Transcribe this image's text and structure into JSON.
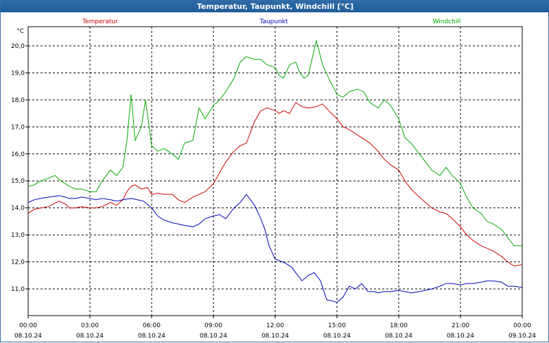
{
  "window": {
    "title": "Temperatur, Taupunkt, Windchill [°C]"
  },
  "chart_data": {
    "type": "line",
    "title": "Temperatur, Taupunkt, Windchill [°C]",
    "ylabel": "°C",
    "ylim": [
      10.0,
      20.5
    ],
    "yticks": [
      "11,0",
      "12,0",
      "13,0",
      "14,0",
      "15,0",
      "16,0",
      "17,0",
      "18,0",
      "19,0",
      "20,0"
    ],
    "ytick_values": [
      11,
      12,
      13,
      14,
      15,
      16,
      17,
      18,
      19,
      20
    ],
    "xlim": [
      0,
      24
    ],
    "xticks": [
      {
        "hour": 0,
        "time": "00:00",
        "date": "08.10.24"
      },
      {
        "hour": 3,
        "time": "03:00",
        "date": "08.10.24"
      },
      {
        "hour": 6,
        "time": "06:00",
        "date": "08.10.24"
      },
      {
        "hour": 9,
        "time": "09:00",
        "date": "08.10.24"
      },
      {
        "hour": 12,
        "time": "12:00",
        "date": "08.10.24"
      },
      {
        "hour": 15,
        "time": "15:00",
        "date": "08.10.24"
      },
      {
        "hour": 18,
        "time": "18:00",
        "date": "08.10.24"
      },
      {
        "hour": 21,
        "time": "21:00",
        "date": "08.10.24"
      },
      {
        "hour": 24,
        "time": "00:00",
        "date": "09.10.24"
      }
    ],
    "grid": true,
    "legend_placement": "top",
    "series": [
      {
        "name": "Temperatur",
        "color": "#cc0000",
        "x": [
          0,
          0.3,
          0.6,
          1,
          1.5,
          1.8,
          2,
          2.3,
          2.6,
          3,
          3.3,
          3.6,
          4,
          4.3,
          4.6,
          4.8,
          5,
          5.2,
          5.5,
          5.8,
          6,
          6.3,
          6.6,
          7,
          7.3,
          7.6,
          8,
          8.3,
          8.6,
          9,
          9.3,
          9.6,
          10,
          10.3,
          10.6,
          11,
          11.3,
          11.6,
          12,
          12.2,
          12.4,
          12.7,
          13,
          13.3,
          13.6,
          14,
          14.3,
          14.6,
          15,
          15.3,
          15.6,
          16,
          16.3,
          16.6,
          17,
          17.3,
          17.6,
          18,
          18.3,
          18.6,
          19,
          19.3,
          19.6,
          20,
          20.3,
          20.6,
          21,
          21.3,
          21.6,
          22,
          22.3,
          22.6,
          23,
          23.3,
          23.6,
          24
        ],
        "values": [
          13.8,
          13.95,
          14.0,
          14.05,
          14.25,
          14.15,
          14.0,
          14.0,
          14.05,
          14.0,
          14.0,
          14.05,
          14.2,
          14.1,
          14.3,
          14.6,
          14.8,
          14.85,
          14.7,
          14.75,
          14.5,
          14.55,
          14.5,
          14.5,
          14.3,
          14.2,
          14.4,
          14.5,
          14.6,
          14.9,
          15.3,
          15.7,
          16.1,
          16.3,
          16.4,
          17.2,
          17.6,
          17.7,
          17.6,
          17.5,
          17.6,
          17.5,
          17.9,
          17.75,
          17.7,
          17.75,
          17.85,
          17.6,
          17.3,
          17.0,
          16.9,
          16.7,
          16.55,
          16.4,
          16.1,
          15.8,
          15.6,
          15.4,
          15.0,
          14.7,
          14.4,
          14.2,
          14.0,
          13.85,
          13.8,
          13.6,
          13.3,
          13.0,
          12.8,
          12.6,
          12.5,
          12.4,
          12.2,
          12.0,
          11.85,
          11.9
        ]
      },
      {
        "name": "Taupunkt",
        "color": "#0000bb",
        "x": [
          0,
          0.3,
          0.6,
          1,
          1.5,
          1.8,
          2,
          2.3,
          2.6,
          3,
          3.3,
          3.6,
          4,
          4.3,
          4.6,
          5,
          5.3,
          5.6,
          6,
          6.3,
          6.6,
          7,
          7.3,
          7.6,
          8,
          8.3,
          8.6,
          9,
          9.3,
          9.6,
          10,
          10.3,
          10.6,
          11,
          11.3,
          11.5,
          11.7,
          12,
          12.2,
          12.5,
          12.8,
          13,
          13.3,
          13.6,
          13.9,
          14.2,
          14.5,
          14.8,
          15,
          15.3,
          15.6,
          15.9,
          16.2,
          16.5,
          16.8,
          17,
          17.3,
          17.6,
          18,
          18.3,
          18.6,
          19,
          19.3,
          19.6,
          20,
          20.3,
          20.6,
          21,
          21.3,
          21.6,
          22,
          22.3,
          22.6,
          23,
          23.3,
          23.6,
          24
        ],
        "values": [
          14.2,
          14.3,
          14.35,
          14.4,
          14.45,
          14.4,
          14.35,
          14.35,
          14.4,
          14.35,
          14.3,
          14.35,
          14.3,
          14.25,
          14.3,
          14.35,
          14.3,
          14.25,
          14.0,
          13.7,
          13.55,
          13.45,
          13.4,
          13.35,
          13.3,
          13.4,
          13.6,
          13.7,
          13.75,
          13.6,
          14.0,
          14.2,
          14.5,
          14.1,
          13.6,
          13.2,
          12.6,
          12.1,
          12.05,
          11.95,
          11.8,
          11.6,
          11.3,
          11.5,
          11.6,
          11.3,
          10.6,
          10.55,
          10.5,
          10.7,
          11.1,
          11.0,
          11.2,
          10.9,
          10.9,
          10.85,
          10.9,
          10.9,
          10.95,
          10.9,
          10.85,
          10.9,
          10.95,
          11.0,
          11.1,
          11.2,
          11.2,
          11.15,
          11.2,
          11.2,
          11.25,
          11.3,
          11.3,
          11.25,
          11.1,
          11.1,
          11.05
        ]
      },
      {
        "name": "Windchill",
        "color": "#00aa00",
        "x": [
          0,
          0.3,
          0.6,
          1,
          1.3,
          1.6,
          2,
          2.3,
          2.6,
          3,
          3.3,
          3.6,
          4,
          4.3,
          4.6,
          4.8,
          5,
          5.2,
          5.5,
          5.7,
          6,
          6.3,
          6.6,
          7,
          7.3,
          7.6,
          8,
          8.3,
          8.6,
          9,
          9.3,
          9.6,
          10,
          10.3,
          10.6,
          11,
          11.3,
          11.6,
          12,
          12.2,
          12.4,
          12.7,
          13,
          13.2,
          13.4,
          13.6,
          14,
          14.3,
          14.6,
          15,
          15.3,
          15.6,
          16,
          16.3,
          16.6,
          17,
          17.3,
          17.6,
          18,
          18.3,
          18.6,
          19,
          19.3,
          19.6,
          20,
          20.3,
          20.6,
          21,
          21.3,
          21.6,
          22,
          22.3,
          22.6,
          23,
          23.3,
          23.6,
          24
        ],
        "values": [
          14.8,
          14.85,
          15.0,
          15.1,
          15.2,
          15.0,
          14.8,
          14.7,
          14.7,
          14.6,
          14.6,
          15.0,
          15.4,
          15.2,
          15.5,
          16.5,
          18.2,
          16.5,
          17.0,
          18.0,
          16.3,
          16.1,
          16.2,
          16.0,
          15.8,
          16.4,
          16.5,
          17.7,
          17.3,
          17.8,
          18.0,
          18.3,
          18.8,
          19.4,
          19.6,
          19.5,
          19.5,
          19.3,
          19.2,
          18.9,
          18.8,
          19.3,
          19.4,
          19.0,
          18.8,
          18.9,
          20.2,
          19.3,
          18.8,
          18.2,
          18.1,
          18.3,
          18.4,
          18.3,
          17.9,
          17.7,
          18.0,
          17.8,
          17.3,
          16.6,
          16.4,
          16.0,
          15.7,
          15.4,
          15.2,
          15.5,
          15.2,
          14.9,
          14.4,
          14.0,
          13.8,
          13.5,
          13.4,
          13.2,
          12.9,
          12.6,
          12.6
        ]
      }
    ]
  }
}
